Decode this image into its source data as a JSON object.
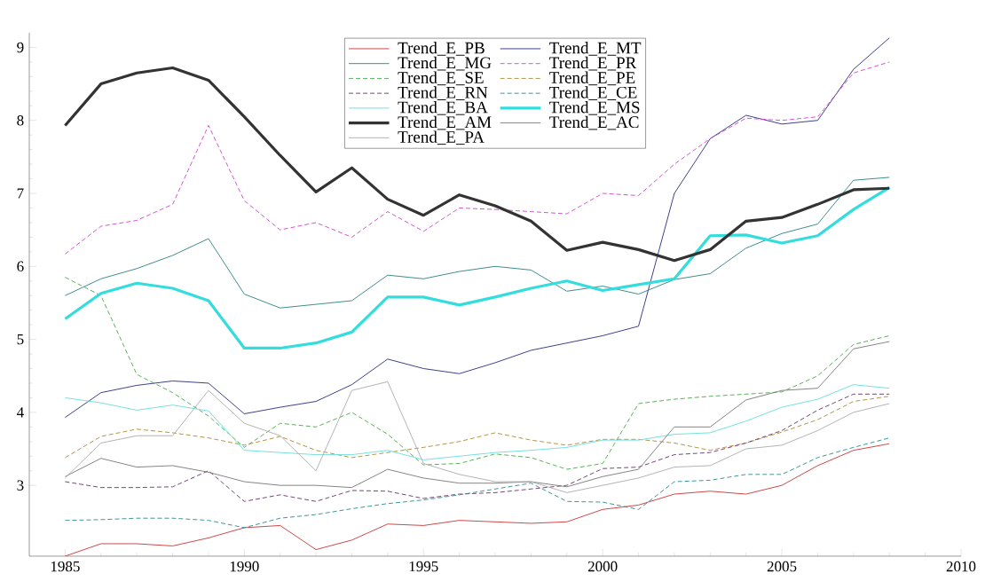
{
  "chart_data": {
    "type": "line",
    "x": [
      1985,
      1986,
      1987,
      1988,
      1989,
      1990,
      1991,
      1992,
      1993,
      1994,
      1995,
      1996,
      1997,
      1998,
      1999,
      2000,
      2001,
      2002,
      2003,
      2004,
      2005,
      2006,
      2007,
      2008
    ],
    "xlim": [
      1984,
      2010
    ],
    "xticks": [
      1985,
      1990,
      1995,
      2000,
      2005,
      2010
    ],
    "ylim": [
      2.03,
      9.2
    ],
    "yticks": [
      3,
      4,
      5,
      6,
      7,
      8,
      9
    ],
    "legend": "top",
    "grid": false,
    "marker": "none",
    "series": [
      {
        "name": "Trend_E_PB",
        "color": "#cc3333",
        "line_style": "solid",
        "values": [
          2.03,
          2.2,
          2.2,
          2.17,
          2.28,
          2.42,
          2.45,
          2.12,
          2.25,
          2.47,
          2.45,
          2.52,
          2.5,
          2.48,
          2.5,
          2.67,
          2.73,
          2.88,
          2.92,
          2.88,
          3.0,
          3.27,
          3.48,
          3.57
        ]
      },
      {
        "name": "Trend_E_MT",
        "color": "#2a2a80",
        "line_style": "solid",
        "values": [
          3.93,
          4.27,
          4.37,
          4.43,
          4.4,
          3.98,
          4.07,
          4.15,
          4.38,
          4.73,
          4.6,
          4.53,
          4.68,
          4.85,
          4.95,
          5.05,
          5.18,
          7.0,
          7.75,
          8.07,
          7.95,
          8.0,
          8.7,
          9.13
        ]
      },
      {
        "name": "Trend_E_MG",
        "color": "#2a8080",
        "line_style": "solid",
        "values": [
          5.6,
          5.83,
          5.97,
          6.15,
          6.38,
          5.62,
          5.43,
          5.48,
          5.53,
          5.88,
          5.83,
          5.93,
          6.0,
          5.95,
          5.66,
          5.73,
          5.62,
          5.82,
          5.9,
          6.25,
          6.45,
          6.58,
          7.18,
          7.22
        ]
      },
      {
        "name": "Trend_E_PR",
        "color": "#cc44cc",
        "line_style": "dashed",
        "values": [
          6.17,
          6.55,
          6.63,
          6.85,
          7.93,
          6.9,
          6.5,
          6.6,
          6.4,
          6.75,
          6.48,
          6.8,
          6.78,
          6.75,
          6.72,
          7.0,
          6.97,
          7.4,
          7.75,
          8.03,
          8.0,
          8.05,
          8.65,
          8.8
        ]
      },
      {
        "name": "Trend_E_SE",
        "color": "#44aa44",
        "line_style": "dashed",
        "values": [
          5.85,
          5.6,
          4.52,
          4.27,
          3.95,
          3.52,
          3.85,
          3.8,
          4.0,
          3.7,
          3.28,
          3.3,
          3.43,
          3.38,
          3.22,
          3.3,
          4.12,
          4.18,
          4.22,
          4.25,
          4.28,
          4.5,
          4.93,
          5.05
        ]
      },
      {
        "name": "Trend_E_PE",
        "color": "#aa8833",
        "line_style": "dashed",
        "values": [
          3.38,
          3.67,
          3.77,
          3.72,
          3.65,
          3.55,
          3.67,
          3.48,
          3.38,
          3.45,
          3.52,
          3.6,
          3.72,
          3.62,
          3.55,
          3.63,
          3.63,
          3.58,
          3.48,
          3.58,
          3.73,
          3.9,
          4.15,
          4.22
        ]
      },
      {
        "name": "Trend_E_RN",
        "color": "#663366",
        "line_style": "dashed",
        "values": [
          3.05,
          2.97,
          2.97,
          2.98,
          3.2,
          2.78,
          2.87,
          2.78,
          2.93,
          2.92,
          2.82,
          2.88,
          2.9,
          2.95,
          3.0,
          3.23,
          3.25,
          3.42,
          3.45,
          3.58,
          3.75,
          4.03,
          4.25,
          4.25
        ]
      },
      {
        "name": "Trend_E_CE",
        "color": "#2a8a8a",
        "line_style": "dashed",
        "values": [
          2.52,
          2.53,
          2.55,
          2.55,
          2.52,
          2.42,
          2.55,
          2.6,
          2.68,
          2.75,
          2.8,
          2.87,
          2.95,
          3.03,
          2.78,
          2.77,
          2.67,
          3.05,
          3.07,
          3.15,
          3.15,
          3.38,
          3.52,
          3.65
        ]
      },
      {
        "name": "Trend_E_BA",
        "color": "#66dddd",
        "line_style": "solid",
        "values": [
          4.2,
          4.13,
          4.03,
          4.1,
          4.02,
          3.48,
          3.45,
          3.42,
          3.42,
          3.48,
          3.35,
          3.4,
          3.45,
          3.48,
          3.52,
          3.62,
          3.62,
          3.7,
          3.72,
          3.88,
          4.07,
          4.18,
          4.38,
          4.33
        ]
      },
      {
        "name": "Trend_E_MS",
        "color": "#33dddd",
        "line_style": "solid",
        "values": [
          5.28,
          5.63,
          5.77,
          5.7,
          5.53,
          4.88,
          4.88,
          4.95,
          5.1,
          5.58,
          5.58,
          5.47,
          5.58,
          5.7,
          5.8,
          5.67,
          5.75,
          5.83,
          6.42,
          6.43,
          6.32,
          6.42,
          6.78,
          7.08
        ]
      },
      {
        "name": "Trend_E_AM",
        "color": "#333333",
        "line_style": "solid",
        "values": [
          7.93,
          8.5,
          8.65,
          8.72,
          8.55,
          8.05,
          7.52,
          7.02,
          7.35,
          6.92,
          6.7,
          6.98,
          6.83,
          6.62,
          6.22,
          6.33,
          6.23,
          6.08,
          6.23,
          6.62,
          6.67,
          6.85,
          7.05,
          7.07
        ]
      },
      {
        "name": "Trend_E_AC",
        "color": "#777777",
        "line_style": "solid",
        "values": [
          3.12,
          3.37,
          3.25,
          3.27,
          3.18,
          3.05,
          3.0,
          3.0,
          2.97,
          3.22,
          3.1,
          3.03,
          3.03,
          3.05,
          2.98,
          3.12,
          3.22,
          3.8,
          3.8,
          4.17,
          4.3,
          4.33,
          4.87,
          4.97
        ]
      },
      {
        "name": "Trend_E_PA",
        "color": "#aaaaaa",
        "line_style": "solid",
        "values": [
          3.1,
          3.58,
          3.68,
          3.68,
          4.3,
          3.85,
          3.68,
          3.2,
          4.3,
          4.42,
          3.3,
          3.15,
          3.05,
          3.05,
          2.9,
          3.0,
          3.1,
          3.25,
          3.27,
          3.5,
          3.55,
          3.75,
          4.0,
          4.12
        ]
      }
    ]
  }
}
